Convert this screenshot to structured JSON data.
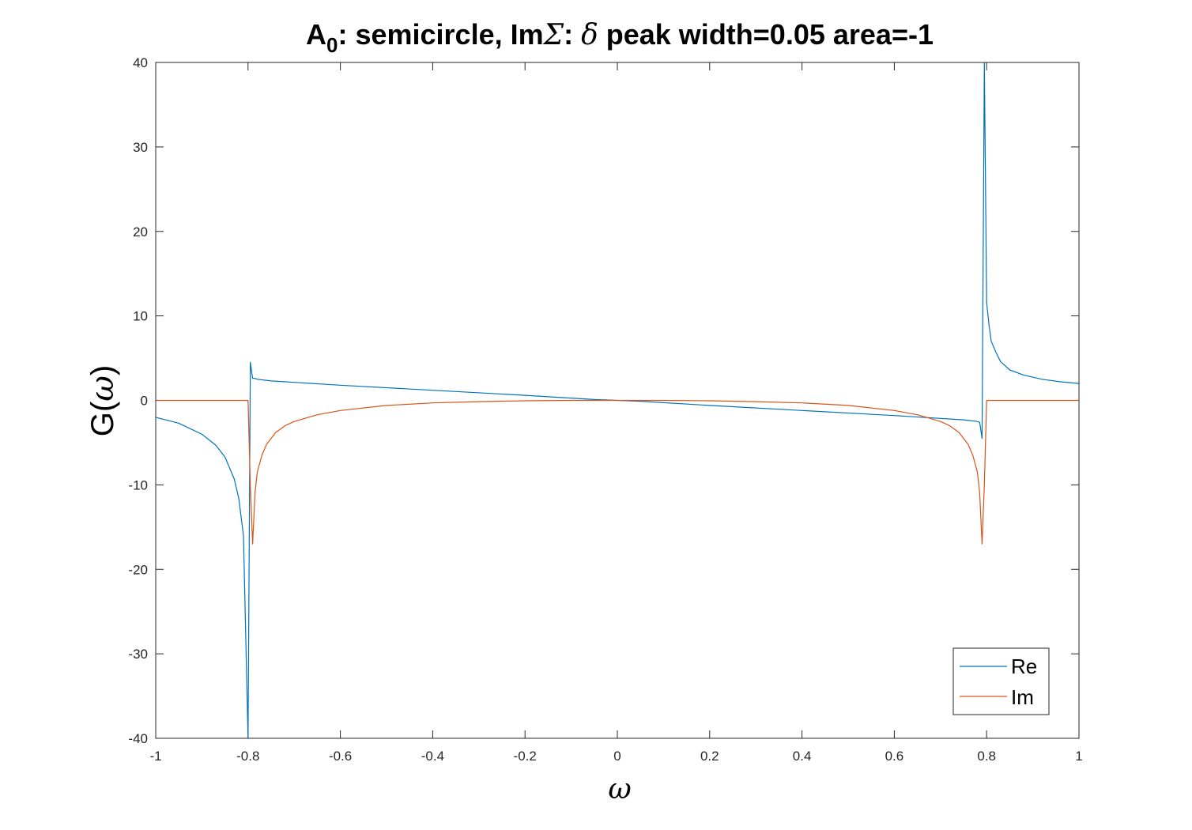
{
  "chart_data": {
    "type": "line",
    "title": {
      "part1": "A",
      "sub": "0",
      "part2": ": semicircle, Im",
      "sigma": "Σ",
      "part3": ": ",
      "delta": "δ",
      "part4": " peak width=0.05 area=-1"
    },
    "xlabel": "ω",
    "ylabel": {
      "pre": "G(",
      "sym": "ω",
      "post": ")"
    },
    "xlim": [
      -1,
      1
    ],
    "ylim": [
      -40,
      40
    ],
    "xticks": [
      -1,
      -0.8,
      -0.6,
      -0.4,
      -0.2,
      0,
      0.2,
      0.4,
      0.6,
      0.8,
      1
    ],
    "xtick_labels": [
      "-1",
      "-0.8",
      "-0.6",
      "-0.4",
      "-0.2",
      "0",
      "0.2",
      "0.4",
      "0.6",
      "0.8",
      "1"
    ],
    "yticks": [
      -40,
      -30,
      -20,
      -10,
      0,
      10,
      20,
      30,
      40
    ],
    "ytick_labels": [
      "-40",
      "-30",
      "-20",
      "-10",
      "0",
      "10",
      "20",
      "30",
      "40"
    ],
    "grid": false,
    "legend_position": "bottom-right",
    "series": [
      {
        "name": "Re",
        "color": "#0072BD",
        "x": [
          -1,
          -0.95,
          -0.9,
          -0.87,
          -0.85,
          -0.83,
          -0.82,
          -0.81,
          -0.8,
          -0.795,
          -0.79,
          -0.785,
          -0.78,
          -0.75,
          -0.6,
          -0.4,
          -0.2,
          -0.05,
          0,
          0.05,
          0.2,
          0.4,
          0.6,
          0.75,
          0.78,
          0.785,
          0.79,
          0.795,
          0.8,
          0.805,
          0.81,
          0.82,
          0.83,
          0.85,
          0.88,
          0.92,
          0.96,
          1
        ],
        "y": [
          -2,
          -2.7,
          -4,
          -5.3,
          -6.7,
          -9.3,
          -11.6,
          -16,
          -40,
          4.5,
          2.6,
          2.6,
          2.5,
          2.3,
          1.8,
          1.2,
          0.6,
          0.1,
          0,
          -0.1,
          -0.6,
          -1.2,
          -1.8,
          -2.3,
          -2.5,
          -2.6,
          -4.5,
          40,
          11.6,
          9,
          7,
          5.7,
          4.6,
          3.6,
          3,
          2.5,
          2.2,
          2
        ]
      },
      {
        "name": "Im",
        "color": "#D95319",
        "x": [
          -1,
          -0.8,
          -0.795,
          -0.79,
          -0.785,
          -0.78,
          -0.77,
          -0.76,
          -0.74,
          -0.72,
          -0.7,
          -0.65,
          -0.6,
          -0.5,
          -0.4,
          -0.3,
          -0.2,
          -0.1,
          0,
          0.1,
          0.2,
          0.3,
          0.4,
          0.5,
          0.6,
          0.65,
          0.7,
          0.72,
          0.74,
          0.76,
          0.77,
          0.78,
          0.785,
          0.79,
          0.795,
          0.8,
          1
        ],
        "y": [
          0,
          0,
          -10,
          -17,
          -11,
          -8.5,
          -6.5,
          -5.2,
          -3.8,
          -3,
          -2.5,
          -1.7,
          -1.2,
          -0.6,
          -0.3,
          -0.15,
          -0.05,
          0,
          0,
          0,
          -0.05,
          -0.15,
          -0.3,
          -0.6,
          -1.2,
          -1.7,
          -2.5,
          -3,
          -3.8,
          -5.2,
          -6.5,
          -8.5,
          -11,
          -17,
          -10,
          0,
          0
        ]
      }
    ]
  }
}
